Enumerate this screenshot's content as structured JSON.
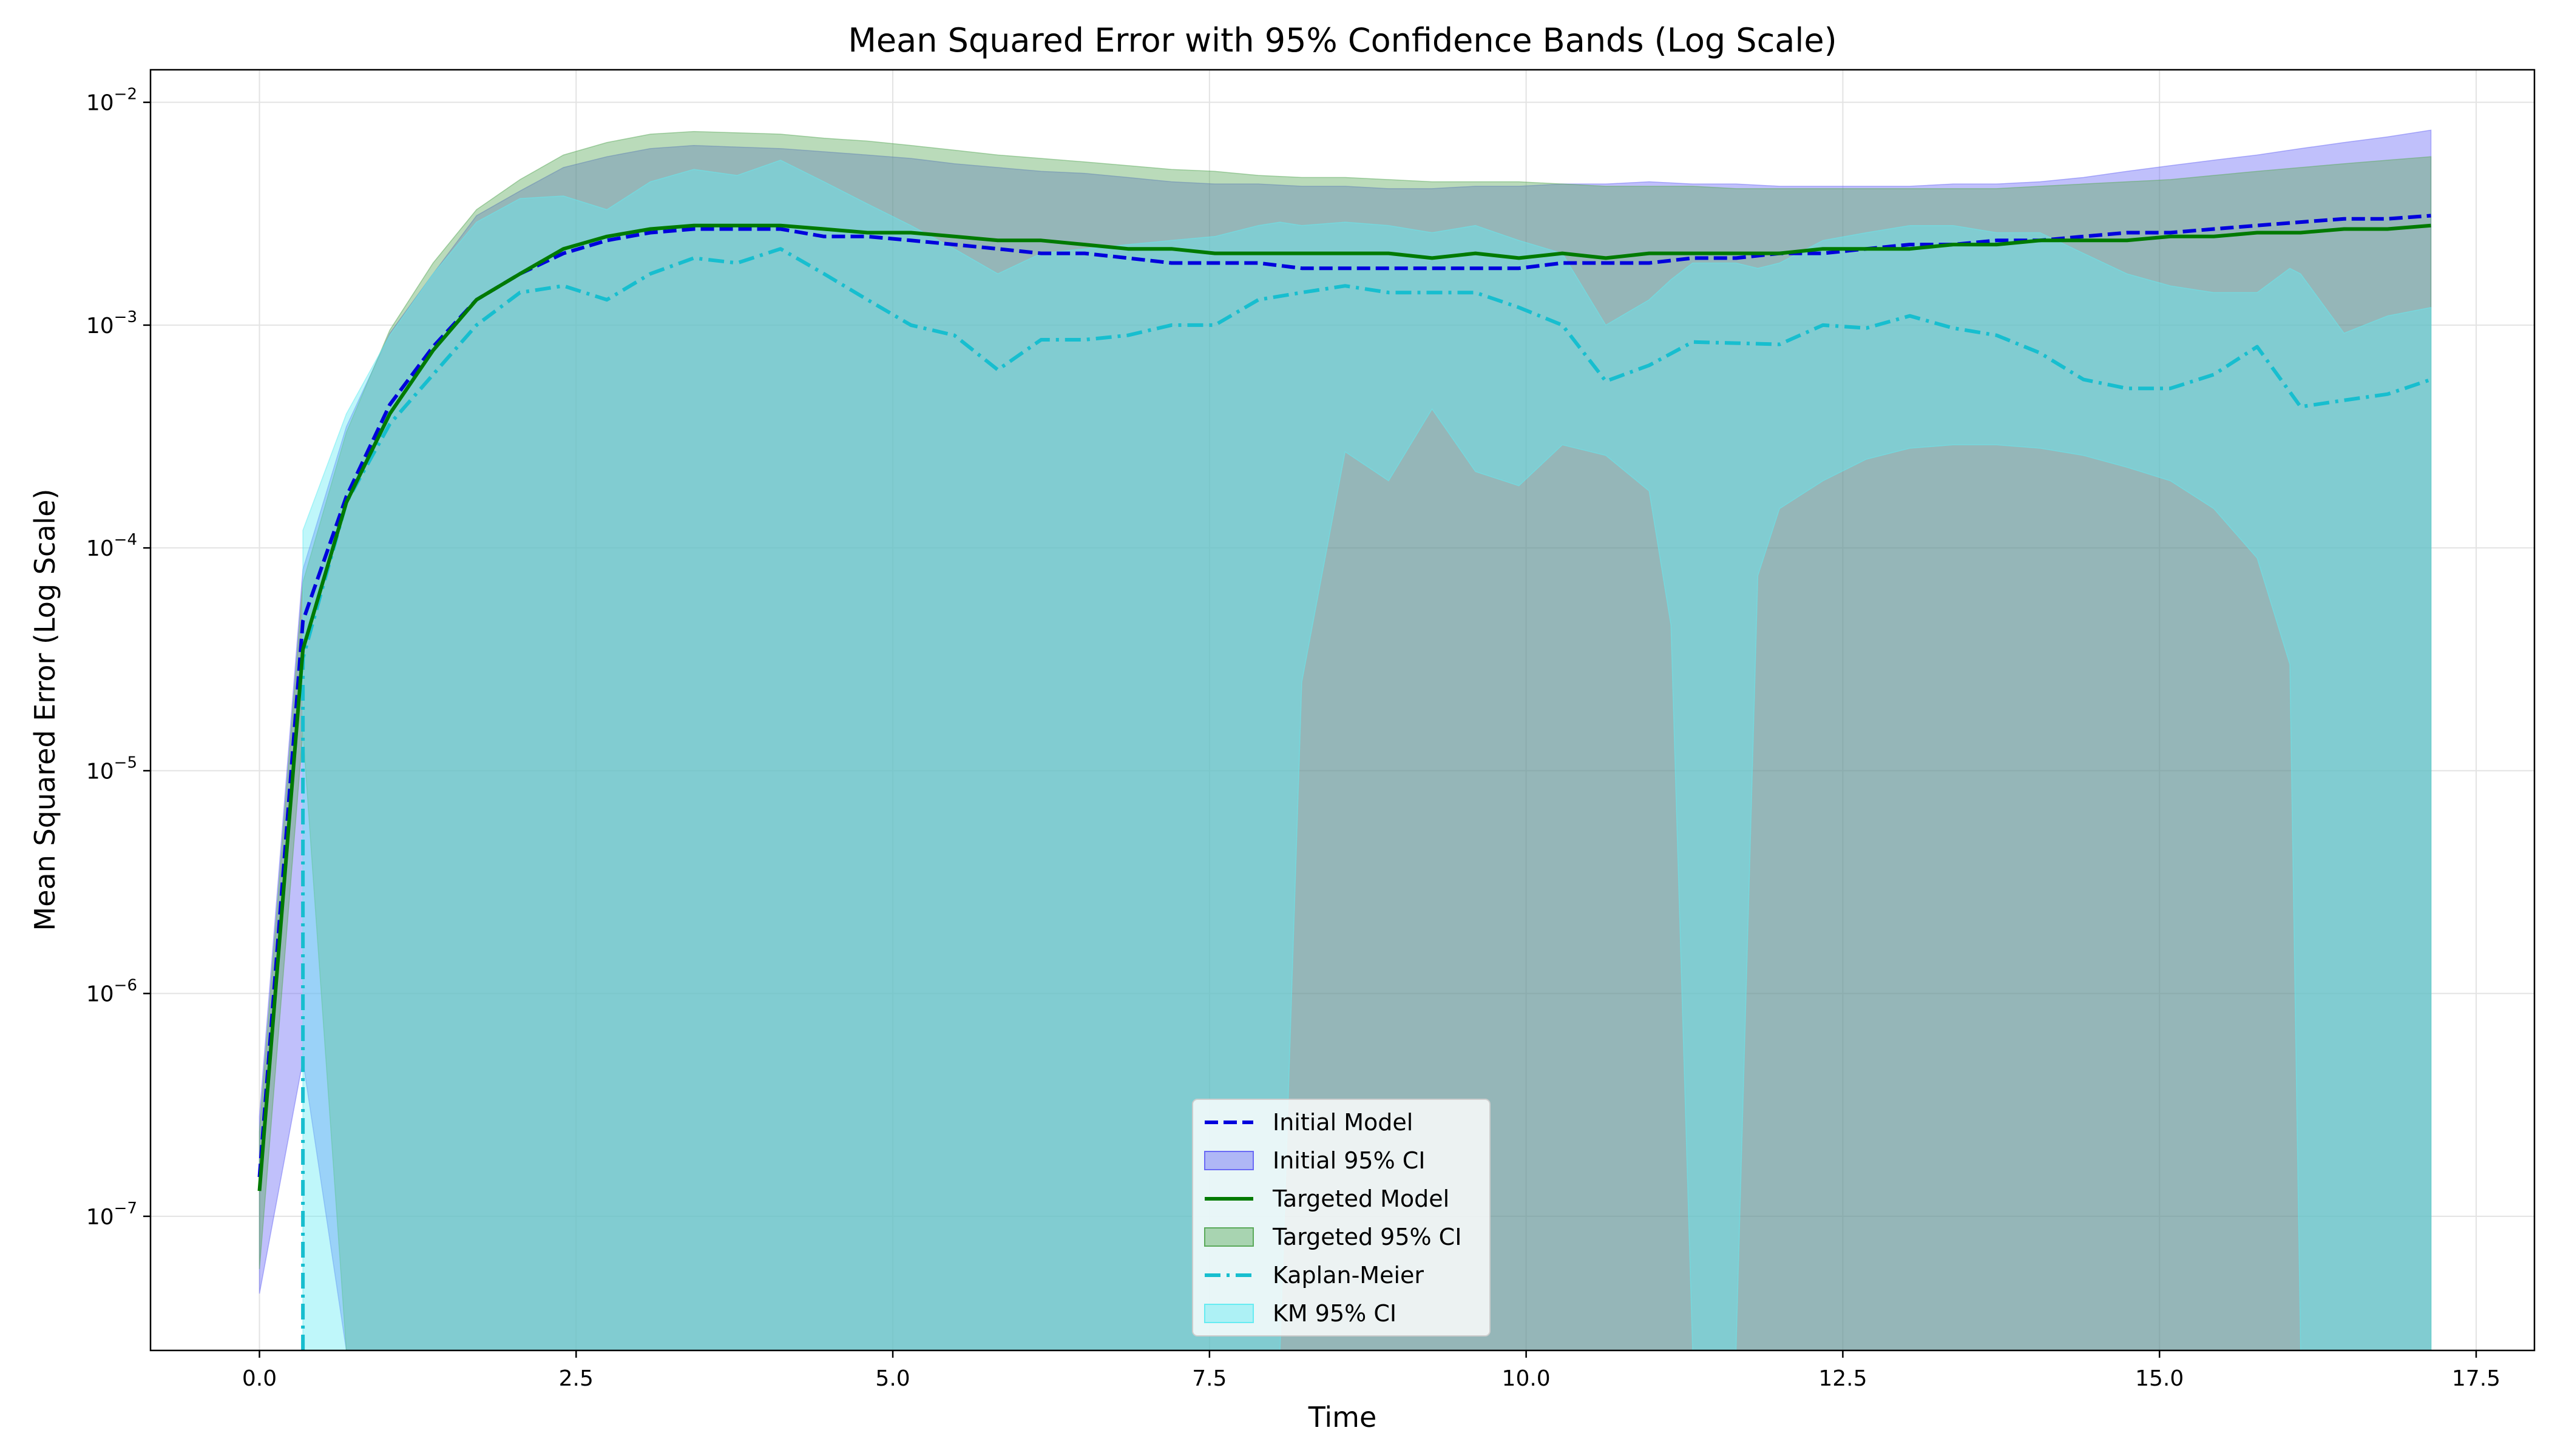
{
  "chart_data": {
    "type": "line",
    "title": "Mean Squared Error with 95% Confidence Bands (Log Scale)",
    "xlabel": "Time",
    "ylabel": "Mean Squared Error (Log Scale)",
    "y_scale": "log",
    "xlim": [
      -0.86,
      17.96
    ],
    "ylim": [
      2.5e-08,
      0.014
    ],
    "x_ticks": [
      0.0,
      2.5,
      5.0,
      7.5,
      10.0,
      12.5,
      15.0,
      17.5
    ],
    "x_tick_labels": [
      "0.0",
      "2.5",
      "5.0",
      "7.5",
      "10.0",
      "12.5",
      "15.0",
      "17.5"
    ],
    "y_ticks": [
      {
        "value": 1e-07,
        "base": "10",
        "exp": "−7"
      },
      {
        "value": 1e-06,
        "base": "10",
        "exp": "−6"
      },
      {
        "value": 1e-05,
        "base": "10",
        "exp": "−5"
      },
      {
        "value": 0.0001,
        "base": "10",
        "exp": "−4"
      },
      {
        "value": 0.001,
        "base": "10",
        "exp": "−3"
      },
      {
        "value": 0.01,
        "base": "10",
        "exp": "−2"
      }
    ],
    "grid": true,
    "legend_position": "bottom-center",
    "legend": [
      {
        "label": "Initial Model",
        "kind": "line",
        "color": "#0000dd",
        "dash": "dashed"
      },
      {
        "label": "Initial 95% CI",
        "kind": "band",
        "color": "#6a6af5"
      },
      {
        "label": "Targeted Model",
        "kind": "line",
        "color": "#007a00",
        "dash": "solid"
      },
      {
        "label": "Targeted 95% CI",
        "kind": "band",
        "color": "#5aaa5a"
      },
      {
        "label": "Kaplan-Meier",
        "kind": "line",
        "color": "#17becf",
        "dash": "dashdot"
      },
      {
        "label": "KM 95% CI",
        "kind": "band",
        "color": "#66ecf2"
      }
    ],
    "series": [
      {
        "name": "Initial Model",
        "kind": "line",
        "color": "#0000dd",
        "dash": "dashed",
        "x": [
          0.0,
          0.343,
          0.686,
          1.029,
          1.371,
          1.714,
          2.057,
          2.4,
          2.743,
          3.086,
          3.429,
          3.771,
          4.114,
          4.457,
          4.8,
          5.143,
          5.486,
          5.829,
          6.171,
          6.514,
          6.857,
          7.2,
          7.543,
          7.886,
          8.229,
          8.571,
          8.914,
          9.257,
          9.6,
          9.943,
          10.286,
          10.629,
          10.971,
          11.314,
          11.657,
          12.0,
          12.343,
          12.686,
          13.029,
          13.371,
          13.714,
          14.057,
          14.4,
          14.743,
          15.086,
          15.429,
          15.771,
          16.114,
          16.457,
          16.8,
          17.143
        ],
        "y": [
          1.5e-07,
          4.7e-05,
          0.00017,
          0.00044,
          0.0008,
          0.0013,
          0.0017,
          0.0021,
          0.0024,
          0.0026,
          0.0027,
          0.0027,
          0.0027,
          0.0025,
          0.0025,
          0.0024,
          0.0023,
          0.0022,
          0.0021,
          0.0021,
          0.002,
          0.0019,
          0.0019,
          0.0019,
          0.0018,
          0.0018,
          0.0018,
          0.0018,
          0.0018,
          0.0018,
          0.0019,
          0.0019,
          0.0019,
          0.002,
          0.002,
          0.0021,
          0.0021,
          0.0022,
          0.0023,
          0.0023,
          0.0024,
          0.0024,
          0.0025,
          0.0026,
          0.0026,
          0.0027,
          0.0028,
          0.0029,
          0.003,
          0.003,
          0.0031
        ]
      },
      {
        "name": "Targeted Model",
        "kind": "line",
        "color": "#007a00",
        "dash": "solid",
        "x": [
          0.0,
          0.343,
          0.686,
          1.029,
          1.371,
          1.714,
          2.057,
          2.4,
          2.743,
          3.086,
          3.429,
          3.771,
          4.114,
          4.457,
          4.8,
          5.143,
          5.486,
          5.829,
          6.171,
          6.514,
          6.857,
          7.2,
          7.543,
          7.886,
          8.229,
          8.571,
          8.914,
          9.257,
          9.6,
          9.943,
          10.286,
          10.629,
          10.971,
          11.314,
          11.657,
          12.0,
          12.343,
          12.686,
          13.029,
          13.371,
          13.714,
          14.057,
          14.4,
          14.743,
          15.086,
          15.429,
          15.771,
          16.114,
          16.457,
          16.8,
          17.143
        ],
        "y": [
          1.3e-07,
          3.5e-05,
          0.00016,
          0.0004,
          0.00077,
          0.0013,
          0.0017,
          0.0022,
          0.0025,
          0.0027,
          0.0028,
          0.0028,
          0.0028,
          0.0027,
          0.0026,
          0.0026,
          0.0025,
          0.0024,
          0.0024,
          0.0023,
          0.0022,
          0.0022,
          0.0021,
          0.0021,
          0.0021,
          0.0021,
          0.0021,
          0.002,
          0.0021,
          0.002,
          0.0021,
          0.002,
          0.0021,
          0.0021,
          0.0021,
          0.0021,
          0.0022,
          0.0022,
          0.0022,
          0.0023,
          0.0023,
          0.0024,
          0.0024,
          0.0024,
          0.0025,
          0.0025,
          0.0026,
          0.0026,
          0.0027,
          0.0027,
          0.0028
        ]
      },
      {
        "name": "Kaplan-Meier",
        "kind": "line",
        "color": "#17becf",
        "dash": "dashdot",
        "x": [
          0.343,
          0.343,
          0.686,
          1.029,
          1.371,
          1.714,
          2.057,
          2.4,
          2.743,
          3.086,
          3.429,
          3.771,
          4.114,
          4.457,
          4.8,
          5.143,
          5.486,
          5.829,
          6.171,
          6.514,
          6.857,
          7.2,
          7.543,
          7.886,
          8.229,
          8.571,
          8.914,
          9.257,
          9.6,
          9.943,
          10.286,
          10.629,
          10.971,
          11.314,
          11.657,
          12.0,
          12.343,
          12.686,
          13.029,
          13.371,
          13.714,
          14.057,
          14.4,
          14.743,
          15.086,
          15.429,
          15.771,
          16.114,
          16.457,
          16.8,
          17.143
        ],
        "y": [
          2.5e-08,
          3.2e-05,
          0.00016,
          0.00036,
          0.0006,
          0.001,
          0.0014,
          0.0015,
          0.0013,
          0.0017,
          0.002,
          0.0019,
          0.0022,
          0.0017,
          0.0013,
          0.001,
          0.0009,
          0.00063,
          0.00086,
          0.00086,
          0.0009,
          0.001,
          0.001,
          0.0013,
          0.0014,
          0.0015,
          0.0014,
          0.0014,
          0.0014,
          0.0012,
          0.001,
          0.00056,
          0.00066,
          0.00084,
          0.00083,
          0.00082,
          0.001,
          0.00097,
          0.0011,
          0.00097,
          0.0009,
          0.00075,
          0.00057,
          0.00052,
          0.00052,
          0.0006,
          0.0008,
          0.00043,
          0.00046,
          0.00049,
          0.00057
        ]
      },
      {
        "name": "Initial 95% CI",
        "kind": "band",
        "color": "#6a6af5",
        "x": [
          0.0,
          0.343,
          0.686,
          1.029,
          1.371,
          1.714,
          2.057,
          2.4,
          2.743,
          3.086,
          3.429,
          3.771,
          4.114,
          4.457,
          4.8,
          5.143,
          5.486,
          5.829,
          6.171,
          6.514,
          6.857,
          7.2,
          7.543,
          7.886,
          8.229,
          8.571,
          8.914,
          9.257,
          9.6,
          9.943,
          10.286,
          10.629,
          10.971,
          11.314,
          11.657,
          12.0,
          12.343,
          12.686,
          13.029,
          13.371,
          13.714,
          14.057,
          14.4,
          14.743,
          15.086,
          15.429,
          15.771,
          16.114,
          16.457,
          16.8,
          17.143
        ],
        "upper": [
          2.8e-07,
          8e-05,
          0.00035,
          0.00092,
          0.0017,
          0.0031,
          0.004,
          0.0051,
          0.0057,
          0.0062,
          0.0064,
          0.0063,
          0.0062,
          0.006,
          0.0058,
          0.0056,
          0.0053,
          0.0051,
          0.0049,
          0.0048,
          0.0046,
          0.0044,
          0.0043,
          0.0043,
          0.0042,
          0.0042,
          0.0041,
          0.0041,
          0.0042,
          0.0042,
          0.0043,
          0.0043,
          0.0044,
          0.0043,
          0.0043,
          0.0042,
          0.0042,
          0.0042,
          0.0042,
          0.0043,
          0.0043,
          0.0044,
          0.0046,
          0.0049,
          0.0052,
          0.0055,
          0.0058,
          0.0062,
          0.0066,
          0.007,
          0.0075
        ],
        "lower": [
          4.5e-08,
          5e-07,
          2.5e-08,
          2.5e-08,
          2.5e-08,
          2.5e-08,
          2.5e-08,
          2.5e-08,
          2.5e-08,
          2.5e-08,
          2.5e-08,
          2.5e-08,
          2.5e-08,
          2.5e-08,
          2.5e-08,
          2.5e-08,
          2.5e-08,
          2.5e-08,
          2.5e-08,
          2.5e-08,
          2.5e-08,
          2.5e-08,
          2.5e-08,
          2.5e-08,
          2.5e-08,
          2.5e-08,
          2.5e-08,
          2.5e-08,
          2.5e-08,
          2.5e-08,
          2.5e-08,
          2.5e-08,
          2.5e-08,
          2.5e-08,
          2.5e-08,
          2.5e-08,
          2.5e-08,
          2.5e-08,
          2.5e-08,
          2.5e-08,
          2.5e-08,
          2.5e-08,
          2.5e-08,
          2.5e-08,
          2.5e-08,
          2.5e-08,
          2.5e-08,
          2.5e-08,
          2.5e-08,
          2.5e-08,
          2.5e-08
        ]
      },
      {
        "name": "Targeted 95% CI",
        "kind": "band",
        "color": "#5aaa5a",
        "x": [
          0.0,
          0.343,
          0.686,
          1.029,
          1.371,
          1.714,
          2.057,
          2.4,
          2.743,
          3.086,
          3.429,
          3.771,
          4.114,
          4.457,
          4.8,
          5.143,
          5.486,
          5.829,
          6.171,
          6.514,
          6.857,
          7.2,
          7.543,
          7.886,
          8.229,
          8.571,
          8.914,
          9.257,
          9.6,
          9.943,
          10.286,
          10.629,
          10.971,
          11.314,
          11.657,
          12.0,
          12.343,
          12.686,
          13.029,
          13.371,
          13.714,
          14.057,
          14.4,
          14.743,
          15.086,
          15.429,
          15.771,
          16.114,
          16.457,
          16.8,
          17.143
        ],
        "upper": [
          2.4e-07,
          7e-05,
          0.00033,
          0.00095,
          0.0019,
          0.0033,
          0.0045,
          0.0058,
          0.0066,
          0.0072,
          0.0074,
          0.0073,
          0.0072,
          0.0069,
          0.0067,
          0.0064,
          0.0061,
          0.0058,
          0.0056,
          0.0054,
          0.0052,
          0.005,
          0.0049,
          0.0047,
          0.0046,
          0.0046,
          0.0045,
          0.0044,
          0.0044,
          0.0044,
          0.0043,
          0.0042,
          0.0042,
          0.0042,
          0.0041,
          0.0041,
          0.0041,
          0.0041,
          0.0041,
          0.0041,
          0.0041,
          0.0042,
          0.0043,
          0.0044,
          0.0045,
          0.0047,
          0.0049,
          0.0051,
          0.0053,
          0.0055,
          0.0057
        ],
        "lower": [
          5.8e-08,
          1.5e-05,
          2.5e-08,
          2.5e-08,
          2.5e-08,
          2.5e-08,
          2.5e-08,
          2.5e-08,
          2.5e-08,
          2.5e-08,
          2.5e-08,
          2.5e-08,
          2.5e-08,
          2.5e-08,
          2.5e-08,
          2.5e-08,
          2.5e-08,
          2.5e-08,
          2.5e-08,
          2.5e-08,
          2.5e-08,
          2.5e-08,
          2.5e-08,
          2.5e-08,
          2.5e-08,
          2.5e-08,
          2.5e-08,
          2.5e-08,
          2.5e-08,
          2.5e-08,
          2.5e-08,
          2.5e-08,
          2.5e-08,
          2.5e-08,
          2.5e-08,
          2.5e-08,
          2.5e-08,
          2.5e-08,
          2.5e-08,
          2.5e-08,
          2.5e-08,
          2.5e-08,
          2.5e-08,
          2.5e-08,
          2.5e-08,
          2.5e-08,
          2.5e-08,
          2.5e-08,
          2.5e-08,
          2.5e-08,
          2.5e-08
        ]
      },
      {
        "name": "KM 95% CI",
        "kind": "band",
        "color": "#66ecf2",
        "x": [
          0.343,
          0.686,
          1.029,
          1.371,
          1.714,
          2.057,
          2.4,
          2.743,
          3.086,
          3.429,
          3.771,
          4.114,
          4.457,
          4.8,
          5.143,
          5.486,
          5.829,
          6.171,
          6.514,
          6.857,
          7.2,
          7.543,
          7.886,
          8.057,
          8.229,
          8.571,
          8.914,
          9.257,
          9.6,
          9.943,
          10.286,
          10.629,
          10.971,
          11.143,
          11.314,
          11.657,
          11.829,
          12.0,
          12.343,
          12.686,
          13.029,
          13.371,
          13.714,
          14.057,
          14.4,
          14.743,
          15.086,
          15.429,
          15.771,
          16.029,
          16.114,
          16.457,
          16.8,
          17.143
        ],
        "upper": [
          0.00012,
          0.0004,
          0.0009,
          0.0017,
          0.0029,
          0.0037,
          0.0038,
          0.0033,
          0.0044,
          0.005,
          0.0047,
          0.0055,
          0.0044,
          0.0035,
          0.0028,
          0.0022,
          0.0017,
          0.0021,
          0.0022,
          0.0023,
          0.0024,
          0.0025,
          0.0028,
          0.0029,
          0.0028,
          0.0029,
          0.0028,
          0.0026,
          0.0028,
          0.0024,
          0.0021,
          0.001,
          0.0013,
          0.0016,
          0.0019,
          0.0019,
          0.0018,
          0.0019,
          0.0024,
          0.0026,
          0.0028,
          0.0028,
          0.0026,
          0.0026,
          0.0021,
          0.0017,
          0.0015,
          0.0014,
          0.0014,
          0.0018,
          0.0017,
          0.00092,
          0.0011,
          0.0012
        ],
        "lower": [
          2.5e-08,
          2.5e-08,
          2.5e-08,
          2.5e-08,
          2.5e-08,
          2.5e-08,
          2.5e-08,
          2.5e-08,
          2.5e-08,
          2.5e-08,
          2.5e-08,
          2.5e-08,
          2.5e-08,
          2.5e-08,
          2.5e-08,
          2.5e-08,
          2.5e-08,
          2.5e-08,
          2.5e-08,
          2.5e-08,
          2.5e-08,
          2.5e-08,
          2.5e-08,
          2.5e-08,
          2.5e-05,
          0.00027,
          0.0002,
          0.00042,
          0.00022,
          0.00019,
          0.00029,
          0.00026,
          0.00018,
          4.5e-05,
          2.5e-08,
          2.5e-08,
          7.5e-05,
          0.00015,
          0.0002,
          0.00025,
          0.00028,
          0.00029,
          0.00029,
          0.00028,
          0.00026,
          0.00023,
          0.0002,
          0.00015,
          9e-05,
          3e-05,
          2.5e-08,
          2.5e-08,
          2.5e-08,
          2.5e-08
        ]
      }
    ]
  }
}
